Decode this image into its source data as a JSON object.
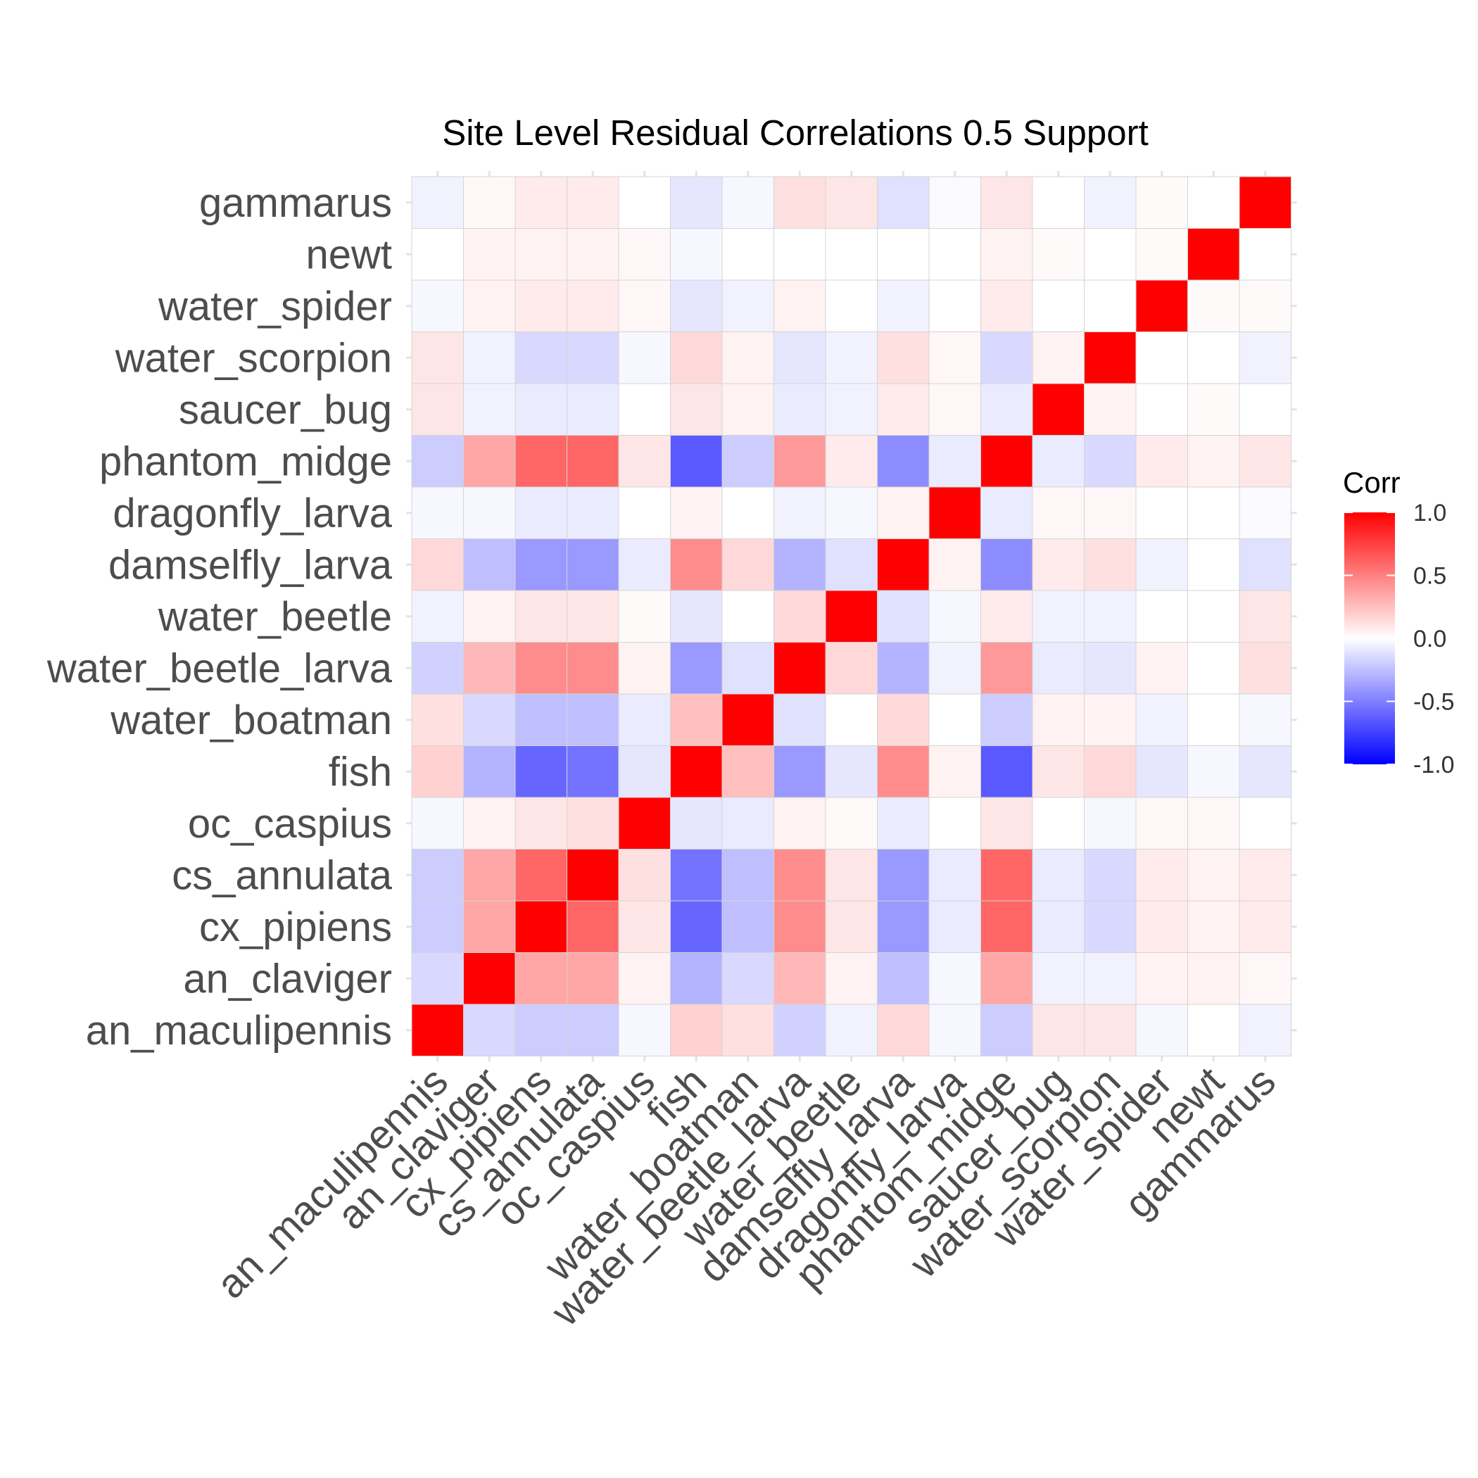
{
  "chart_data": {
    "type": "heatmap",
    "title": "Site Level Residual Correlations 0.5 Support",
    "xlabel": "",
    "ylabel": "",
    "categories": [
      "an_maculipennis",
      "an_claviger",
      "cx_pipiens",
      "cs_annulata",
      "oc_caspius",
      "fish",
      "water_boatman",
      "water_beetle_larva",
      "water_beetle",
      "damselfly_larva",
      "dragonfly_larva",
      "phantom_midge",
      "saucer_bug",
      "water_scorpion",
      "water_spider",
      "newt",
      "gammarus"
    ],
    "values": [
      [
        1.0,
        -0.15,
        -0.2,
        -0.2,
        -0.03,
        0.18,
        0.12,
        -0.18,
        -0.05,
        0.15,
        -0.03,
        -0.2,
        0.1,
        0.1,
        -0.03,
        0.0,
        -0.05
      ],
      [
        -0.15,
        1.0,
        0.35,
        0.35,
        0.05,
        -0.3,
        -0.15,
        0.28,
        0.05,
        -0.25,
        -0.03,
        0.35,
        -0.05,
        -0.05,
        0.05,
        0.05,
        0.03
      ],
      [
        -0.2,
        0.35,
        1.0,
        0.6,
        0.1,
        -0.6,
        -0.25,
        0.45,
        0.1,
        -0.4,
        -0.08,
        0.6,
        -0.08,
        -0.15,
        0.08,
        0.05,
        0.08
      ],
      [
        -0.2,
        0.35,
        0.6,
        1.0,
        0.12,
        -0.55,
        -0.25,
        0.45,
        0.1,
        -0.4,
        -0.08,
        0.6,
        -0.08,
        -0.15,
        0.08,
        0.05,
        0.08
      ],
      [
        -0.03,
        0.05,
        0.1,
        0.12,
        1.0,
        -0.1,
        -0.08,
        0.05,
        0.02,
        -0.08,
        0.0,
        0.1,
        0.0,
        -0.03,
        0.03,
        0.03,
        0.0
      ],
      [
        0.18,
        -0.3,
        -0.6,
        -0.55,
        -0.1,
        1.0,
        0.25,
        -0.4,
        -0.1,
        0.45,
        0.05,
        -0.65,
        0.1,
        0.15,
        -0.1,
        -0.03,
        -0.1
      ],
      [
        0.12,
        -0.15,
        -0.25,
        -0.25,
        -0.08,
        0.25,
        1.0,
        -0.12,
        0.0,
        0.15,
        0.0,
        -0.2,
        0.05,
        0.05,
        -0.05,
        0.0,
        -0.03
      ],
      [
        -0.18,
        0.28,
        0.45,
        0.45,
        0.05,
        -0.4,
        -0.12,
        1.0,
        0.15,
        -0.3,
        -0.05,
        0.4,
        -0.08,
        -0.1,
        0.05,
        0.0,
        0.12
      ],
      [
        -0.05,
        0.05,
        0.1,
        0.1,
        0.02,
        -0.1,
        0.0,
        0.15,
        1.0,
        -0.12,
        -0.03,
        0.08,
        -0.05,
        -0.05,
        0.0,
        0.0,
        0.1
      ],
      [
        0.15,
        -0.25,
        -0.4,
        -0.4,
        -0.08,
        0.45,
        0.15,
        -0.3,
        -0.12,
        1.0,
        0.05,
        -0.45,
        0.08,
        0.12,
        -0.05,
        0.0,
        -0.12
      ],
      [
        -0.03,
        -0.03,
        -0.08,
        -0.08,
        0.0,
        0.05,
        0.0,
        -0.05,
        -0.03,
        0.05,
        1.0,
        -0.08,
        0.03,
        0.03,
        0.0,
        0.0,
        -0.02
      ],
      [
        -0.2,
        0.35,
        0.6,
        0.6,
        0.1,
        -0.65,
        -0.2,
        0.4,
        0.08,
        -0.45,
        -0.08,
        1.0,
        -0.08,
        -0.15,
        0.08,
        0.05,
        0.1
      ],
      [
        0.1,
        -0.05,
        -0.08,
        -0.08,
        0.0,
        0.1,
        0.05,
        -0.08,
        -0.05,
        0.08,
        0.03,
        -0.08,
        1.0,
        0.05,
        0.0,
        0.02,
        0.0
      ],
      [
        0.1,
        -0.05,
        -0.15,
        -0.15,
        -0.03,
        0.15,
        0.05,
        -0.1,
        -0.05,
        0.12,
        0.03,
        -0.15,
        0.05,
        1.0,
        0.0,
        0.0,
        -0.05
      ],
      [
        -0.03,
        0.05,
        0.08,
        0.08,
        0.03,
        -0.1,
        -0.05,
        0.05,
        0.0,
        -0.05,
        0.0,
        0.08,
        0.0,
        0.0,
        1.0,
        0.02,
        0.02
      ],
      [
        0.0,
        0.05,
        0.05,
        0.05,
        0.03,
        -0.03,
        0.0,
        0.0,
        0.0,
        0.0,
        0.0,
        0.05,
        0.02,
        0.0,
        0.02,
        1.0,
        0.0
      ],
      [
        -0.05,
        0.03,
        0.08,
        0.08,
        0.0,
        -0.1,
        -0.03,
        0.12,
        0.1,
        -0.12,
        -0.02,
        0.1,
        0.0,
        -0.05,
        0.02,
        0.0,
        1.0
      ]
    ],
    "color_scale": {
      "low": "#0000ff",
      "mid": "#ffffff",
      "high": "#ff0000",
      "limits": [
        -1.0,
        1.0
      ]
    },
    "legend": {
      "title": "Corr",
      "placement": "right",
      "breaks": [
        1.0,
        0.5,
        0.0,
        -0.5,
        -1.0
      ],
      "labels": [
        "1.0",
        "0.5",
        "0.0",
        "-0.5",
        "-1.0"
      ]
    },
    "grid": true,
    "x_tick_rotation": 45
  }
}
